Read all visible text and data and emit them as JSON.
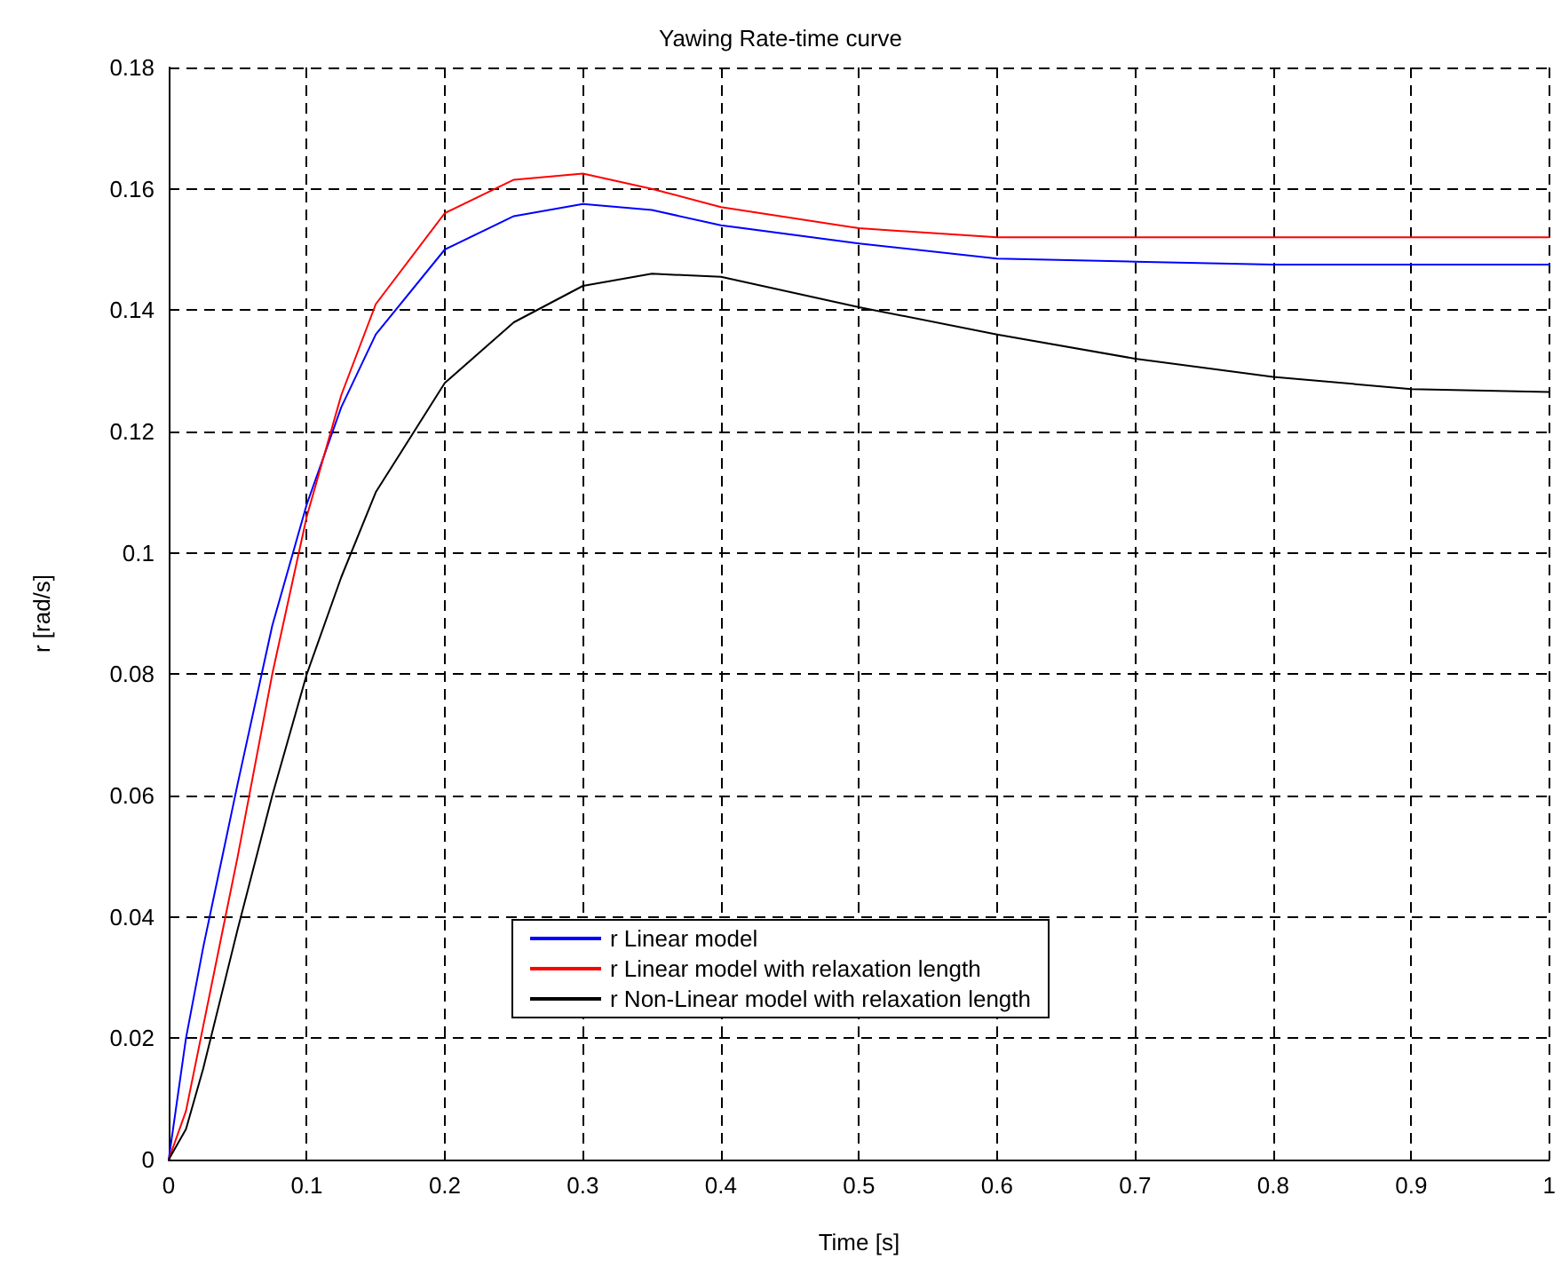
{
  "chart_data": {
    "type": "line",
    "title": "Yawing Rate-time curve",
    "xlabel": "Time [s]",
    "ylabel": "r [rad/s]",
    "xlim": [
      0,
      1
    ],
    "xticks": [
      0,
      0.1,
      0.2,
      0.3,
      0.4,
      0.5,
      0.6,
      0.7,
      0.8,
      0.9,
      1
    ],
    "ylim": [
      0,
      0.18
    ],
    "yticks": [
      0,
      0.02,
      0.04,
      0.06,
      0.08,
      0.1,
      0.12,
      0.14,
      0.16,
      0.18
    ],
    "grid": true,
    "legend": "bottom",
    "marker": "none",
    "line_style": "solid",
    "series": [
      {
        "name": "r Linear model",
        "color": "#0000ff",
        "x": [
          0,
          0.0125,
          0.025,
          0.05,
          0.075,
          0.1,
          0.125,
          0.15,
          0.2,
          0.25,
          0.3,
          0.35,
          0.4,
          0.5,
          0.6,
          0.7,
          0.8,
          1
        ],
        "values": [
          0,
          0.02,
          0.035,
          0.062,
          0.088,
          0.108,
          0.124,
          0.136,
          0.15,
          0.1555,
          0.1575,
          0.1565,
          0.154,
          0.151,
          0.1485,
          0.148,
          0.1475,
          0.1475
        ]
      },
      {
        "name": "r Linear model with relaxation length",
        "color": "#ff0000",
        "x": [
          0,
          0.0125,
          0.025,
          0.05,
          0.075,
          0.1,
          0.125,
          0.15,
          0.2,
          0.25,
          0.3,
          0.35,
          0.4,
          0.5,
          0.6,
          0.7,
          0.8,
          1
        ],
        "values": [
          0,
          0.008,
          0.022,
          0.05,
          0.08,
          0.106,
          0.126,
          0.141,
          0.156,
          0.1615,
          0.1625,
          0.16,
          0.157,
          0.1535,
          0.152,
          0.152,
          0.152,
          0.152
        ]
      },
      {
        "name": "r Non-Linear model with relaxation length",
        "color": "#000000",
        "x": [
          0,
          0.0125,
          0.025,
          0.05,
          0.075,
          0.1,
          0.125,
          0.15,
          0.2,
          0.25,
          0.3,
          0.35,
          0.4,
          0.5,
          0.6,
          0.7,
          0.8,
          0.9,
          1
        ],
        "values": [
          0,
          0.005,
          0.015,
          0.038,
          0.06,
          0.08,
          0.096,
          0.11,
          0.128,
          0.138,
          0.144,
          0.146,
          0.1455,
          0.1405,
          0.136,
          0.132,
          0.129,
          0.127,
          0.1265
        ]
      }
    ]
  }
}
